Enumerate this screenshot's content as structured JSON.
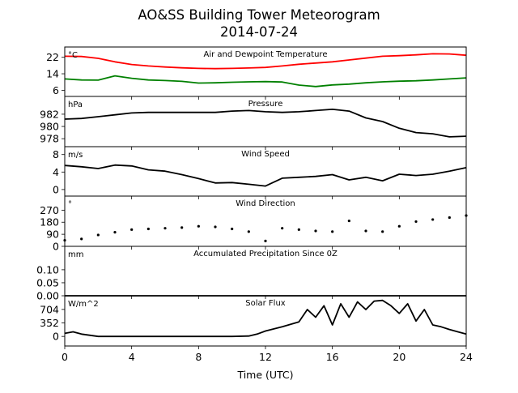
{
  "title": "AO&SS Building Tower Meteorogram",
  "subtitle": "2014-07-24",
  "chart_data": [
    {
      "type": "line",
      "title": "Air and Dewpoint Temperature",
      "unit": "°C",
      "ylim": [
        3,
        27
      ],
      "yticks": [
        6,
        14,
        22
      ],
      "x": [
        0,
        1,
        2,
        3,
        4,
        5,
        6,
        7,
        8,
        9,
        10,
        11,
        12,
        13,
        14,
        15,
        16,
        17,
        18,
        19,
        20,
        21,
        22,
        23,
        24
      ],
      "series": [
        {
          "color": "#ff0000",
          "values": [
            22.5,
            22.4,
            21.5,
            19.8,
            18.5,
            17.8,
            17.3,
            16.9,
            16.6,
            16.5,
            16.6,
            16.8,
            17.1,
            17.8,
            18.6,
            19.2,
            19.8,
            20.7,
            21.6,
            22.5,
            22.8,
            23.2,
            23.7,
            23.6,
            23.0
          ]
        },
        {
          "color": "#008000",
          "values": [
            11.5,
            11.0,
            10.9,
            13.0,
            11.8,
            11.0,
            10.7,
            10.3,
            9.5,
            9.6,
            9.9,
            10.1,
            10.2,
            10.0,
            8.5,
            7.8,
            8.6,
            9.0,
            9.6,
            10.1,
            10.4,
            10.6,
            11.0,
            11.5,
            12.0
          ]
        }
      ]
    },
    {
      "type": "line",
      "title": "Pressure",
      "unit": "hPa",
      "ylim": [
        976.7,
        984.9
      ],
      "yticks": [
        978,
        980,
        982
      ],
      "x": [
        0,
        1,
        2,
        3,
        4,
        5,
        6,
        7,
        8,
        9,
        10,
        11,
        12,
        13,
        14,
        15,
        16,
        17,
        18,
        19,
        20,
        21,
        22,
        23,
        24
      ],
      "series": [
        {
          "color": "#000000",
          "values": [
            981.2,
            981.3,
            981.6,
            981.9,
            982.2,
            982.3,
            982.3,
            982.3,
            982.3,
            982.3,
            982.5,
            982.6,
            982.4,
            982.3,
            982.4,
            982.6,
            982.8,
            982.5,
            981.4,
            980.8,
            979.7,
            979.0,
            978.8,
            978.3,
            978.4
          ]
        }
      ]
    },
    {
      "type": "line",
      "title": "Wind Speed",
      "unit": "m/s",
      "ylim": [
        -1.5,
        9.8
      ],
      "yticks": [
        0,
        4,
        8
      ],
      "x": [
        0,
        1,
        2,
        3,
        4,
        5,
        6,
        7,
        8,
        9,
        10,
        11,
        12,
        13,
        14,
        15,
        16,
        17,
        18,
        19,
        20,
        21,
        22,
        23,
        24
      ],
      "series": [
        {
          "color": "#000000",
          "values": [
            5.5,
            5.2,
            4.8,
            5.6,
            5.4,
            4.5,
            4.2,
            3.4,
            2.5,
            1.5,
            1.6,
            1.2,
            0.8,
            2.6,
            2.8,
            3.0,
            3.4,
            2.2,
            2.8,
            2.0,
            3.5,
            3.2,
            3.5,
            4.2,
            5.0
          ]
        }
      ]
    },
    {
      "type": "scatter",
      "title": "Wind Direction",
      "unit": "°",
      "ylim": [
        0,
        375
      ],
      "yticks": [
        0,
        90,
        180,
        270
      ],
      "x": [
        0,
        1,
        2,
        3,
        4,
        5,
        6,
        7,
        8,
        9,
        10,
        11,
        12,
        13,
        14,
        15,
        16,
        17,
        18,
        19,
        20,
        21,
        22,
        23,
        24
      ],
      "series": [
        {
          "color": "#000000",
          "values": [
            45,
            55,
            85,
            105,
            125,
            130,
            135,
            140,
            150,
            145,
            130,
            110,
            40,
            135,
            125,
            115,
            110,
            190,
            115,
            110,
            150,
            185,
            200,
            215,
            230
          ]
        }
      ]
    },
    {
      "type": "line",
      "title": "Accumulated Precipitation Since 0Z",
      "unit": "mm",
      "ylim": [
        0,
        0.19
      ],
      "yticks": [
        "0.00",
        "0.05",
        "0.10"
      ],
      "x": [
        0,
        24
      ],
      "series": [
        {
          "color": "#000000",
          "values": [
            0.0,
            0.0
          ]
        }
      ]
    },
    {
      "type": "line",
      "title": "Solar Flux",
      "unit": "W/m^2",
      "ylim": [
        -250,
        1060
      ],
      "yticks": [
        0,
        352,
        704
      ],
      "x": [
        0,
        0.5,
        1,
        2,
        3,
        4,
        5,
        6,
        7,
        8,
        9,
        10,
        11,
        11.5,
        12,
        13,
        14,
        14.5,
        15,
        15.5,
        16,
        16.5,
        17,
        17.5,
        18,
        18.5,
        19,
        19.5,
        20,
        20.5,
        21,
        21.5,
        22,
        22.5,
        23,
        23.5,
        24
      ],
      "series": [
        {
          "color": "#000000",
          "values": [
            80,
            120,
            60,
            0,
            0,
            0,
            0,
            0,
            0,
            0,
            0,
            0,
            10,
            60,
            140,
            250,
            380,
            700,
            500,
            800,
            300,
            850,
            500,
            900,
            700,
            920,
            940,
            800,
            600,
            850,
            400,
            700,
            300,
            250,
            180,
            120,
            60
          ]
        }
      ]
    }
  ],
  "xaxis": {
    "label": "Time (UTC)",
    "range": [
      0,
      24
    ],
    "ticks": [
      0,
      4,
      8,
      12,
      16,
      20,
      24
    ]
  }
}
